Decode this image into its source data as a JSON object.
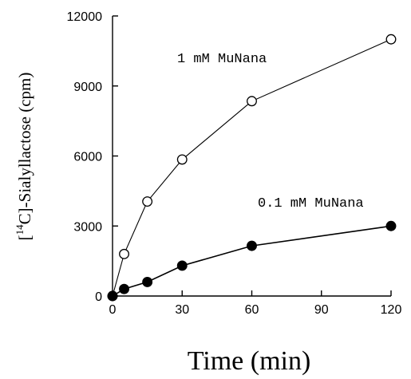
{
  "chart_data": {
    "type": "line",
    "title": "",
    "xlabel": "Time (min)",
    "ylabel": {
      "superscript": "14",
      "text_before": "[",
      "text_after": "C]-Sialyllactose (cpm)"
    },
    "xlim": [
      0,
      120
    ],
    "ylim": [
      0,
      12000
    ],
    "xticks": [
      0,
      30,
      60,
      90,
      120
    ],
    "yticks": [
      0,
      3000,
      6000,
      9000,
      12000
    ],
    "grid": false,
    "series": [
      {
        "name": "1 mM MuNana",
        "marker": "open-circle",
        "color": "#000000",
        "x": [
          0,
          5,
          15,
          30,
          60,
          120
        ],
        "y": [
          0,
          1800,
          4050,
          5850,
          8350,
          11000
        ]
      },
      {
        "name": "0.1 mM MuNana",
        "marker": "filled-circle",
        "color": "#000000",
        "x": [
          0,
          5,
          15,
          30,
          60,
          120
        ],
        "y": [
          0,
          300,
          600,
          1300,
          2150,
          3000
        ]
      }
    ]
  }
}
